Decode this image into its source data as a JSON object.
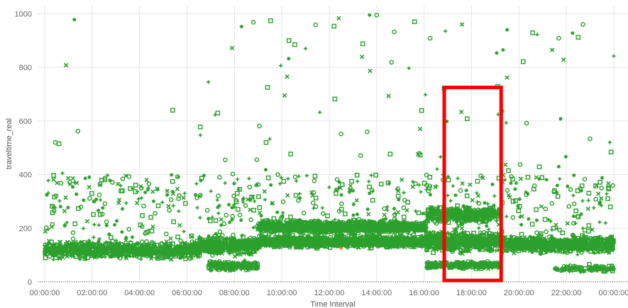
{
  "chart_data": {
    "type": "scatter",
    "title": "",
    "xlabel": "Time  Interval",
    "ylabel": "traveltime_real",
    "x_ticks": [
      "00:00:00",
      "02:00:00",
      "04:00:00",
      "06:00:00",
      "08:00:00",
      "10:00:00",
      "12:00:00",
      "14:00:00",
      "16:00:00",
      "18:00:00",
      "20:00:00",
      "22:00:00",
      "00:00:00"
    ],
    "x_tick_hours": [
      0,
      2,
      4,
      6,
      8,
      10,
      12,
      14,
      16,
      18,
      20,
      22,
      24
    ],
    "xlim_hours": [
      -0.3,
      24.6
    ],
    "y_ticks": [
      0,
      200,
      400,
      600,
      800,
      1000
    ],
    "ylim": [
      0,
      1030
    ],
    "grid": true,
    "marker_color": "#2ca02c",
    "highlight_color": "#ff7f0e",
    "bands": [
      {
        "start": 0.0,
        "end": 6.5,
        "center": 118,
        "spread": 14,
        "density": 1.0
      },
      {
        "start": 6.5,
        "end": 9.0,
        "center": 135,
        "spread": 16,
        "density": 1.2
      },
      {
        "start": 9.0,
        "end": 16.1,
        "center": 150,
        "spread": 10,
        "density": 1.4
      },
      {
        "start": 9.0,
        "end": 16.1,
        "center": 205,
        "spread": 10,
        "density": 1.3
      },
      {
        "start": 16.1,
        "end": 19.2,
        "center": 150,
        "spread": 18,
        "density": 1.4
      },
      {
        "start": 16.1,
        "end": 19.2,
        "center": 250,
        "spread": 14,
        "density": 0.9
      },
      {
        "start": 16.1,
        "end": 19.2,
        "center": 62,
        "spread": 6,
        "density": 0.7
      },
      {
        "start": 6.9,
        "end": 9.0,
        "center": 60,
        "spread": 8,
        "density": 0.7
      },
      {
        "start": 19.2,
        "end": 24.0,
        "center": 140,
        "spread": 14,
        "density": 1.2
      },
      {
        "start": 21.5,
        "end": 24.0,
        "center": 50,
        "spread": 6,
        "density": 0.3
      }
    ],
    "scatter_levels": [
      {
        "start": 0.0,
        "end": 6.5,
        "max": 400
      },
      {
        "start": 6.5,
        "end": 9.0,
        "max": 650
      },
      {
        "start": 9.0,
        "end": 16.1,
        "max": 1000
      },
      {
        "start": 16.1,
        "end": 20.0,
        "max": 960
      },
      {
        "start": 20.0,
        "end": 24.0,
        "max": 960
      }
    ],
    "outliers": [
      {
        "x": 0.45,
        "y": 520
      },
      {
        "x": 0.6,
        "y": 515
      },
      {
        "x": 0.75,
        "y": 405
      },
      {
        "x": 0.9,
        "y": 808
      },
      {
        "x": 1.25,
        "y": 978
      },
      {
        "x": 1.4,
        "y": 562
      },
      {
        "x": 5.4,
        "y": 640
      },
      {
        "x": 6.9,
        "y": 745
      },
      {
        "x": 7.9,
        "y": 872
      },
      {
        "x": 8.3,
        "y": 952
      },
      {
        "x": 8.8,
        "y": 968
      },
      {
        "x": 10.3,
        "y": 900
      },
      {
        "x": 11.0,
        "y": 870
      },
      {
        "x": 12.4,
        "y": 983
      },
      {
        "x": 13.7,
        "y": 995
      },
      {
        "x": 14.0,
        "y": 995
      },
      {
        "x": 15.6,
        "y": 970
      },
      {
        "x": 16.9,
        "y": 935
      },
      {
        "x": 17.6,
        "y": 960
      },
      {
        "x": 19.5,
        "y": 940
      },
      {
        "x": 22.7,
        "y": 960
      },
      {
        "x": 22.5,
        "y": 912
      },
      {
        "x": 24.0,
        "y": 842
      },
      {
        "x": 21.4,
        "y": 865
      }
    ],
    "highlight_point": {
      "x": 12.5,
      "y": 125
    },
    "annotation_box": {
      "x_start": 16.85,
      "x_end": 19.25,
      "y_start": 5,
      "y_end": 725,
      "color": "#ff0000"
    }
  }
}
